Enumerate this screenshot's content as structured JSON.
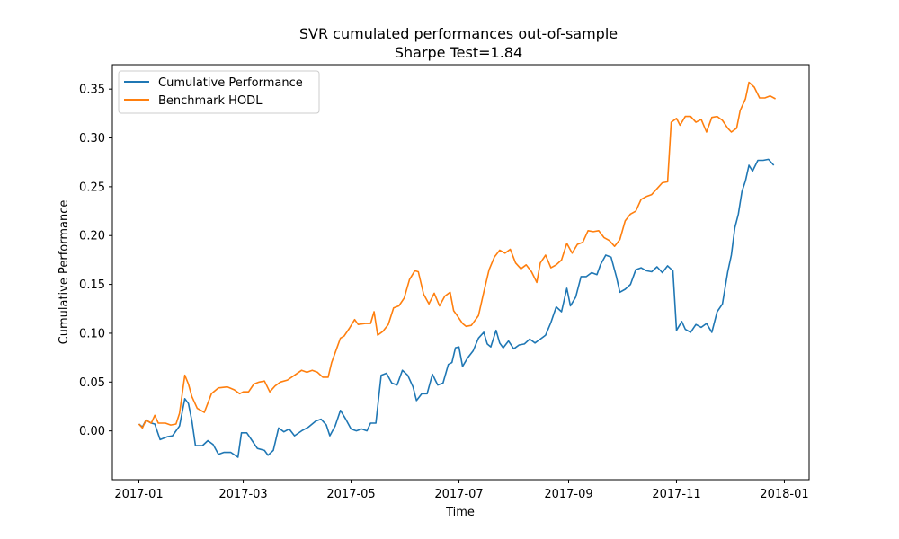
{
  "chart_data": {
    "type": "line",
    "title": "SVR cumulated performances out-of-sample",
    "subtitle": "Sharpe Test=1.84",
    "xlabel": "Time",
    "ylabel": "Cumulative Performance",
    "x_ticks": [
      "2017-01",
      "2017-03",
      "2017-05",
      "2017-07",
      "2017-09",
      "2017-11",
      "2018-01"
    ],
    "x_tick_dates": [
      "2017-01-01",
      "2017-03-01",
      "2017-05-01",
      "2017-07-01",
      "2017-09-01",
      "2017-11-01",
      "2018-01-01"
    ],
    "y_ticks": [
      "0.00",
      "0.05",
      "0.10",
      "0.15",
      "0.20",
      "0.25",
      "0.30",
      "0.35"
    ],
    "xlim": [
      "2016-12-17",
      "2018-01-15"
    ],
    "ylim": [
      -0.05,
      0.375
    ],
    "grid": false,
    "legend_position": "top-left",
    "series": [
      {
        "name": "Cumulative Performance",
        "color": "#1f77b4",
        "points": [
          [
            "2017-01-01",
            0.007
          ],
          [
            "2017-01-03",
            0.004
          ],
          [
            "2017-01-05",
            0.011
          ],
          [
            "2017-01-08",
            0.008
          ],
          [
            "2017-01-10",
            0.007
          ],
          [
            "2017-01-13",
            -0.009
          ],
          [
            "2017-01-17",
            -0.006
          ],
          [
            "2017-01-20",
            -0.005
          ],
          [
            "2017-01-22",
            0.0
          ],
          [
            "2017-01-24",
            0.005
          ],
          [
            "2017-01-27",
            0.033
          ],
          [
            "2017-01-29",
            0.028
          ],
          [
            "2017-01-31",
            0.01
          ],
          [
            "2017-02-02",
            -0.015
          ],
          [
            "2017-02-06",
            -0.015
          ],
          [
            "2017-02-09",
            -0.01
          ],
          [
            "2017-02-12",
            -0.014
          ],
          [
            "2017-02-15",
            -0.024
          ],
          [
            "2017-02-18",
            -0.022
          ],
          [
            "2017-02-22",
            -0.022
          ],
          [
            "2017-02-26",
            -0.027
          ],
          [
            "2017-02-28",
            -0.002
          ],
          [
            "2017-03-03",
            -0.002
          ],
          [
            "2017-03-06",
            -0.01
          ],
          [
            "2017-03-09",
            -0.018
          ],
          [
            "2017-03-13",
            -0.02
          ],
          [
            "2017-03-15",
            -0.025
          ],
          [
            "2017-03-18",
            -0.02
          ],
          [
            "2017-03-21",
            0.003
          ],
          [
            "2017-03-24",
            -0.001
          ],
          [
            "2017-03-27",
            0.002
          ],
          [
            "2017-03-30",
            -0.005
          ],
          [
            "2017-04-03",
            0.0
          ],
          [
            "2017-04-07",
            0.004
          ],
          [
            "2017-04-11",
            0.01
          ],
          [
            "2017-04-14",
            0.012
          ],
          [
            "2017-04-17",
            0.006
          ],
          [
            "2017-04-19",
            -0.005
          ],
          [
            "2017-04-22",
            0.005
          ],
          [
            "2017-04-25",
            0.021
          ],
          [
            "2017-04-28",
            0.012
          ],
          [
            "2017-05-01",
            0.002
          ],
          [
            "2017-05-04",
            0.0
          ],
          [
            "2017-05-07",
            0.002
          ],
          [
            "2017-05-10",
            0.0
          ],
          [
            "2017-05-12",
            0.008
          ],
          [
            "2017-05-15",
            0.008
          ],
          [
            "2017-05-18",
            0.057
          ],
          [
            "2017-05-21",
            0.059
          ],
          [
            "2017-05-24",
            0.049
          ],
          [
            "2017-05-27",
            0.047
          ],
          [
            "2017-05-30",
            0.062
          ],
          [
            "2017-06-02",
            0.057
          ],
          [
            "2017-06-05",
            0.045
          ],
          [
            "2017-06-07",
            0.031
          ],
          [
            "2017-06-10",
            0.038
          ],
          [
            "2017-06-13",
            0.038
          ],
          [
            "2017-06-16",
            0.058
          ],
          [
            "2017-06-19",
            0.047
          ],
          [
            "2017-06-22",
            0.049
          ],
          [
            "2017-06-25",
            0.068
          ],
          [
            "2017-06-27",
            0.07
          ],
          [
            "2017-06-29",
            0.085
          ],
          [
            "2017-07-01",
            0.086
          ],
          [
            "2017-07-03",
            0.066
          ],
          [
            "2017-07-06",
            0.075
          ],
          [
            "2017-07-09",
            0.082
          ],
          [
            "2017-07-12",
            0.095
          ],
          [
            "2017-07-15",
            0.101
          ],
          [
            "2017-07-17",
            0.089
          ],
          [
            "2017-07-19",
            0.086
          ],
          [
            "2017-07-22",
            0.103
          ],
          [
            "2017-07-24",
            0.09
          ],
          [
            "2017-07-26",
            0.085
          ],
          [
            "2017-07-29",
            0.092
          ],
          [
            "2017-08-01",
            0.084
          ],
          [
            "2017-08-04",
            0.088
          ],
          [
            "2017-08-07",
            0.089
          ],
          [
            "2017-08-10",
            0.094
          ],
          [
            "2017-08-13",
            0.09
          ],
          [
            "2017-08-16",
            0.094
          ],
          [
            "2017-08-19",
            0.098
          ],
          [
            "2017-08-22",
            0.111
          ],
          [
            "2017-08-25",
            0.127
          ],
          [
            "2017-08-28",
            0.122
          ],
          [
            "2017-08-31",
            0.146
          ],
          [
            "2017-09-02",
            0.128
          ],
          [
            "2017-09-05",
            0.137
          ],
          [
            "2017-09-08",
            0.158
          ],
          [
            "2017-09-11",
            0.158
          ],
          [
            "2017-09-14",
            0.162
          ],
          [
            "2017-09-17",
            0.16
          ],
          [
            "2017-09-19",
            0.17
          ],
          [
            "2017-09-22",
            0.18
          ],
          [
            "2017-09-25",
            0.178
          ],
          [
            "2017-09-28",
            0.158
          ],
          [
            "2017-09-30",
            0.142
          ],
          [
            "2017-10-03",
            0.145
          ],
          [
            "2017-10-06",
            0.15
          ],
          [
            "2017-10-09",
            0.165
          ],
          [
            "2017-10-12",
            0.167
          ],
          [
            "2017-10-15",
            0.164
          ],
          [
            "2017-10-18",
            0.163
          ],
          [
            "2017-10-21",
            0.168
          ],
          [
            "2017-10-24",
            0.162
          ],
          [
            "2017-10-27",
            0.169
          ],
          [
            "2017-10-30",
            0.164
          ],
          [
            "2017-11-01",
            0.103
          ],
          [
            "2017-11-04",
            0.112
          ],
          [
            "2017-11-06",
            0.104
          ],
          [
            "2017-11-09",
            0.101
          ],
          [
            "2017-11-12",
            0.109
          ],
          [
            "2017-11-15",
            0.106
          ],
          [
            "2017-11-18",
            0.11
          ],
          [
            "2017-11-21",
            0.101
          ],
          [
            "2017-11-24",
            0.122
          ],
          [
            "2017-11-27",
            0.13
          ],
          [
            "2017-11-30",
            0.163
          ],
          [
            "2017-12-02",
            0.18
          ],
          [
            "2017-12-04",
            0.208
          ],
          [
            "2017-12-06",
            0.222
          ],
          [
            "2017-12-08",
            0.245
          ],
          [
            "2017-12-10",
            0.256
          ],
          [
            "2017-12-12",
            0.272
          ],
          [
            "2017-12-14",
            0.266
          ],
          [
            "2017-12-17",
            0.277
          ],
          [
            "2017-12-20",
            0.277
          ],
          [
            "2017-12-23",
            0.278
          ],
          [
            "2017-12-26",
            0.272
          ]
        ]
      },
      {
        "name": "Benchmark HODL",
        "color": "#ff7f0e",
        "points": [
          [
            "2017-01-01",
            0.007
          ],
          [
            "2017-01-03",
            0.003
          ],
          [
            "2017-01-05",
            0.011
          ],
          [
            "2017-01-08",
            0.008
          ],
          [
            "2017-01-10",
            0.016
          ],
          [
            "2017-01-12",
            0.008
          ],
          [
            "2017-01-16",
            0.008
          ],
          [
            "2017-01-19",
            0.006
          ],
          [
            "2017-01-22",
            0.007
          ],
          [
            "2017-01-24",
            0.018
          ],
          [
            "2017-01-27",
            0.057
          ],
          [
            "2017-01-29",
            0.048
          ],
          [
            "2017-01-31",
            0.035
          ],
          [
            "2017-02-03",
            0.023
          ],
          [
            "2017-02-07",
            0.019
          ],
          [
            "2017-02-11",
            0.038
          ],
          [
            "2017-02-15",
            0.044
          ],
          [
            "2017-02-20",
            0.045
          ],
          [
            "2017-02-24",
            0.042
          ],
          [
            "2017-02-27",
            0.038
          ],
          [
            "2017-03-01",
            0.04
          ],
          [
            "2017-03-04",
            0.04
          ],
          [
            "2017-03-07",
            0.048
          ],
          [
            "2017-03-10",
            0.05
          ],
          [
            "2017-03-13",
            0.051
          ],
          [
            "2017-03-16",
            0.04
          ],
          [
            "2017-03-19",
            0.046
          ],
          [
            "2017-03-22",
            0.05
          ],
          [
            "2017-03-26",
            0.052
          ],
          [
            "2017-03-30",
            0.057
          ],
          [
            "2017-04-03",
            0.062
          ],
          [
            "2017-04-06",
            0.06
          ],
          [
            "2017-04-09",
            0.062
          ],
          [
            "2017-04-12",
            0.06
          ],
          [
            "2017-04-15",
            0.055
          ],
          [
            "2017-04-18",
            0.055
          ],
          [
            "2017-04-20",
            0.07
          ],
          [
            "2017-04-23",
            0.085
          ],
          [
            "2017-04-25",
            0.095
          ],
          [
            "2017-04-27",
            0.097
          ],
          [
            "2017-04-30",
            0.105
          ],
          [
            "2017-05-03",
            0.114
          ],
          [
            "2017-05-05",
            0.109
          ],
          [
            "2017-05-09",
            0.11
          ],
          [
            "2017-05-12",
            0.11
          ],
          [
            "2017-05-14",
            0.122
          ],
          [
            "2017-05-16",
            0.098
          ],
          [
            "2017-05-19",
            0.102
          ],
          [
            "2017-05-22",
            0.109
          ],
          [
            "2017-05-25",
            0.126
          ],
          [
            "2017-05-28",
            0.128
          ],
          [
            "2017-05-31",
            0.136
          ],
          [
            "2017-06-03",
            0.155
          ],
          [
            "2017-06-06",
            0.164
          ],
          [
            "2017-06-08",
            0.163
          ],
          [
            "2017-06-11",
            0.14
          ],
          [
            "2017-06-14",
            0.13
          ],
          [
            "2017-06-17",
            0.141
          ],
          [
            "2017-06-20",
            0.128
          ],
          [
            "2017-06-23",
            0.138
          ],
          [
            "2017-06-26",
            0.142
          ],
          [
            "2017-06-28",
            0.123
          ],
          [
            "2017-06-30",
            0.118
          ],
          [
            "2017-07-03",
            0.11
          ],
          [
            "2017-07-05",
            0.107
          ],
          [
            "2017-07-08",
            0.108
          ],
          [
            "2017-07-12",
            0.118
          ],
          [
            "2017-07-15",
            0.142
          ],
          [
            "2017-07-18",
            0.165
          ],
          [
            "2017-07-21",
            0.178
          ],
          [
            "2017-07-24",
            0.185
          ],
          [
            "2017-07-27",
            0.182
          ],
          [
            "2017-07-30",
            0.186
          ],
          [
            "2017-08-02",
            0.172
          ],
          [
            "2017-08-05",
            0.166
          ],
          [
            "2017-08-08",
            0.17
          ],
          [
            "2017-08-11",
            0.163
          ],
          [
            "2017-08-14",
            0.152
          ],
          [
            "2017-08-16",
            0.172
          ],
          [
            "2017-08-19",
            0.18
          ],
          [
            "2017-08-22",
            0.167
          ],
          [
            "2017-08-25",
            0.17
          ],
          [
            "2017-08-28",
            0.175
          ],
          [
            "2017-08-31",
            0.192
          ],
          [
            "2017-09-03",
            0.182
          ],
          [
            "2017-09-06",
            0.191
          ],
          [
            "2017-09-09",
            0.193
          ],
          [
            "2017-09-12",
            0.205
          ],
          [
            "2017-09-15",
            0.204
          ],
          [
            "2017-09-18",
            0.205
          ],
          [
            "2017-09-21",
            0.198
          ],
          [
            "2017-09-24",
            0.195
          ],
          [
            "2017-09-27",
            0.189
          ],
          [
            "2017-09-30",
            0.196
          ],
          [
            "2017-10-03",
            0.215
          ],
          [
            "2017-10-06",
            0.222
          ],
          [
            "2017-10-09",
            0.225
          ],
          [
            "2017-10-12",
            0.237
          ],
          [
            "2017-10-15",
            0.24
          ],
          [
            "2017-10-18",
            0.242
          ],
          [
            "2017-10-21",
            0.248
          ],
          [
            "2017-10-24",
            0.254
          ],
          [
            "2017-10-27",
            0.255
          ],
          [
            "2017-10-29",
            0.316
          ],
          [
            "2017-11-01",
            0.32
          ],
          [
            "2017-11-03",
            0.313
          ],
          [
            "2017-11-06",
            0.322
          ],
          [
            "2017-11-09",
            0.322
          ],
          [
            "2017-11-12",
            0.316
          ],
          [
            "2017-11-15",
            0.319
          ],
          [
            "2017-11-18",
            0.306
          ],
          [
            "2017-11-21",
            0.321
          ],
          [
            "2017-11-24",
            0.322
          ],
          [
            "2017-11-27",
            0.318
          ],
          [
            "2017-11-30",
            0.31
          ],
          [
            "2017-12-02",
            0.306
          ],
          [
            "2017-12-05",
            0.31
          ],
          [
            "2017-12-07",
            0.328
          ],
          [
            "2017-12-10",
            0.34
          ],
          [
            "2017-12-12",
            0.357
          ],
          [
            "2017-12-15",
            0.352
          ],
          [
            "2017-12-18",
            0.341
          ],
          [
            "2017-12-21",
            0.341
          ],
          [
            "2017-12-24",
            0.343
          ],
          [
            "2017-12-27",
            0.34
          ]
        ]
      }
    ]
  }
}
